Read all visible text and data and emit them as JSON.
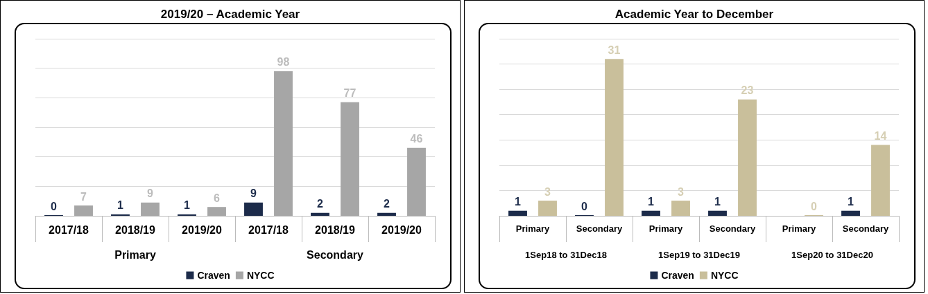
{
  "chart_data": [
    {
      "type": "bar",
      "title": "2019/20 – Academic Year",
      "categories": [
        "2017/18",
        "2018/19",
        "2019/20",
        "2017/18",
        "2018/19",
        "2019/20"
      ],
      "annotations": [
        "Primary",
        "Secondary"
      ],
      "series": [
        {
          "name": "Craven",
          "color": "#1c2b4a",
          "values": [
            0,
            1,
            1,
            9,
            2,
            2
          ]
        },
        {
          "name": "NYCC",
          "color": "#a6a6a6",
          "values": [
            7,
            9,
            6,
            98,
            77,
            46
          ]
        }
      ],
      "ylim": [
        0,
        120
      ],
      "yticks": [
        {
          "value": 0,
          "label": null
        },
        {
          "value": 20,
          "label": null
        },
        {
          "value": 40,
          "label": null
        },
        {
          "value": 60,
          "label": null
        },
        {
          "value": 80,
          "label": null
        },
        {
          "value": 100,
          "label": null
        },
        {
          "value": 120,
          "label": null
        }
      ],
      "tick_labels": "x",
      "grid": "y",
      "legend": "bottom",
      "data_labels": true
    },
    {
      "type": "bar",
      "title": "Academic Year to December",
      "categories": [
        "Primary",
        "Secondary",
        "Primary",
        "Secondary",
        "Primary",
        "Secondary"
      ],
      "annotations": [
        "1Sep18 to 31Dec18",
        "1Sep19 to 31Dec19",
        "1Sep20 to 31Dec20"
      ],
      "series": [
        {
          "name": "Craven",
          "color": "#1c2b4a",
          "values": [
            1,
            0,
            1,
            1,
            null,
            1
          ]
        },
        {
          "name": "NYCC",
          "color": "#c9bf9b",
          "values": [
            3,
            31,
            3,
            23,
            0,
            14
          ]
        }
      ],
      "ylim": [
        0,
        35
      ],
      "yticks": [
        {
          "value": 0,
          "label": null
        },
        {
          "value": 5,
          "label": null
        },
        {
          "value": 10,
          "label": null
        },
        {
          "value": 15,
          "label": null
        },
        {
          "value": 20,
          "label": null
        },
        {
          "value": 25,
          "label": null
        },
        {
          "value": 30,
          "label": null
        },
        {
          "value": 35,
          "label": null
        }
      ],
      "tick_labels": "x",
      "grid": "y",
      "legend": "bottom",
      "data_labels": true
    }
  ]
}
